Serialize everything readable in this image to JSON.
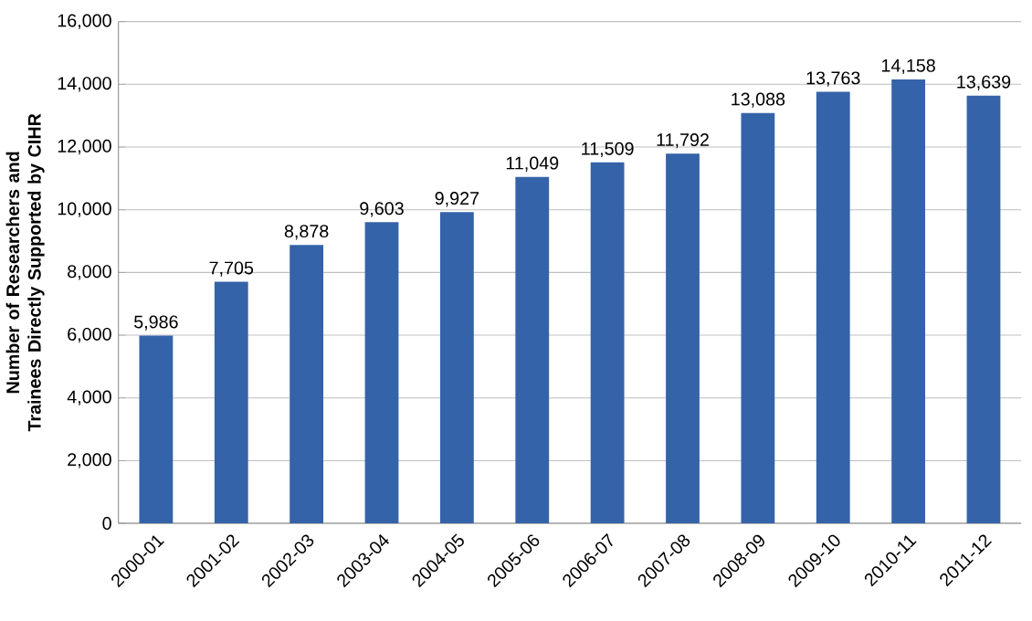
{
  "chart_data": {
    "type": "bar",
    "ylabel": "Number of Researchers and Trainees Directly Supported by CIHR",
    "categories": [
      "2000-01",
      "2001-02",
      "2002-03",
      "2003-04",
      "2004-05",
      "2005-06",
      "2006-07",
      "2007-08",
      "2008-09",
      "2009-10",
      "2010-11",
      "2011-12"
    ],
    "values": [
      5986,
      7705,
      8878,
      9603,
      9927,
      11049,
      11509,
      11792,
      13088,
      13763,
      14158,
      13639
    ],
    "value_labels": [
      "5,986",
      "7,705",
      "8,878",
      "9,603",
      "9,927",
      "11,049",
      "11,509",
      "11,792",
      "13,088",
      "13,763",
      "14,158",
      "13,639"
    ],
    "color": "#3563a9",
    "ylim": [
      0,
      16000
    ],
    "yticks": [
      0,
      {
        "value": 2000,
        "label": "2,000"
      },
      {
        "value": 4000,
        "label": "4,000"
      },
      {
        "value": 6000,
        "label": "6,000"
      },
      {
        "value": 8000,
        "label": "8,000"
      },
      {
        "value": 10000,
        "label": "10,000"
      },
      {
        "value": 12000,
        "label": "12,000"
      },
      {
        "value": 14000,
        "label": "14,000"
      },
      {
        "value": 16000,
        "label": "16,000"
      }
    ],
    "grid": "y"
  }
}
